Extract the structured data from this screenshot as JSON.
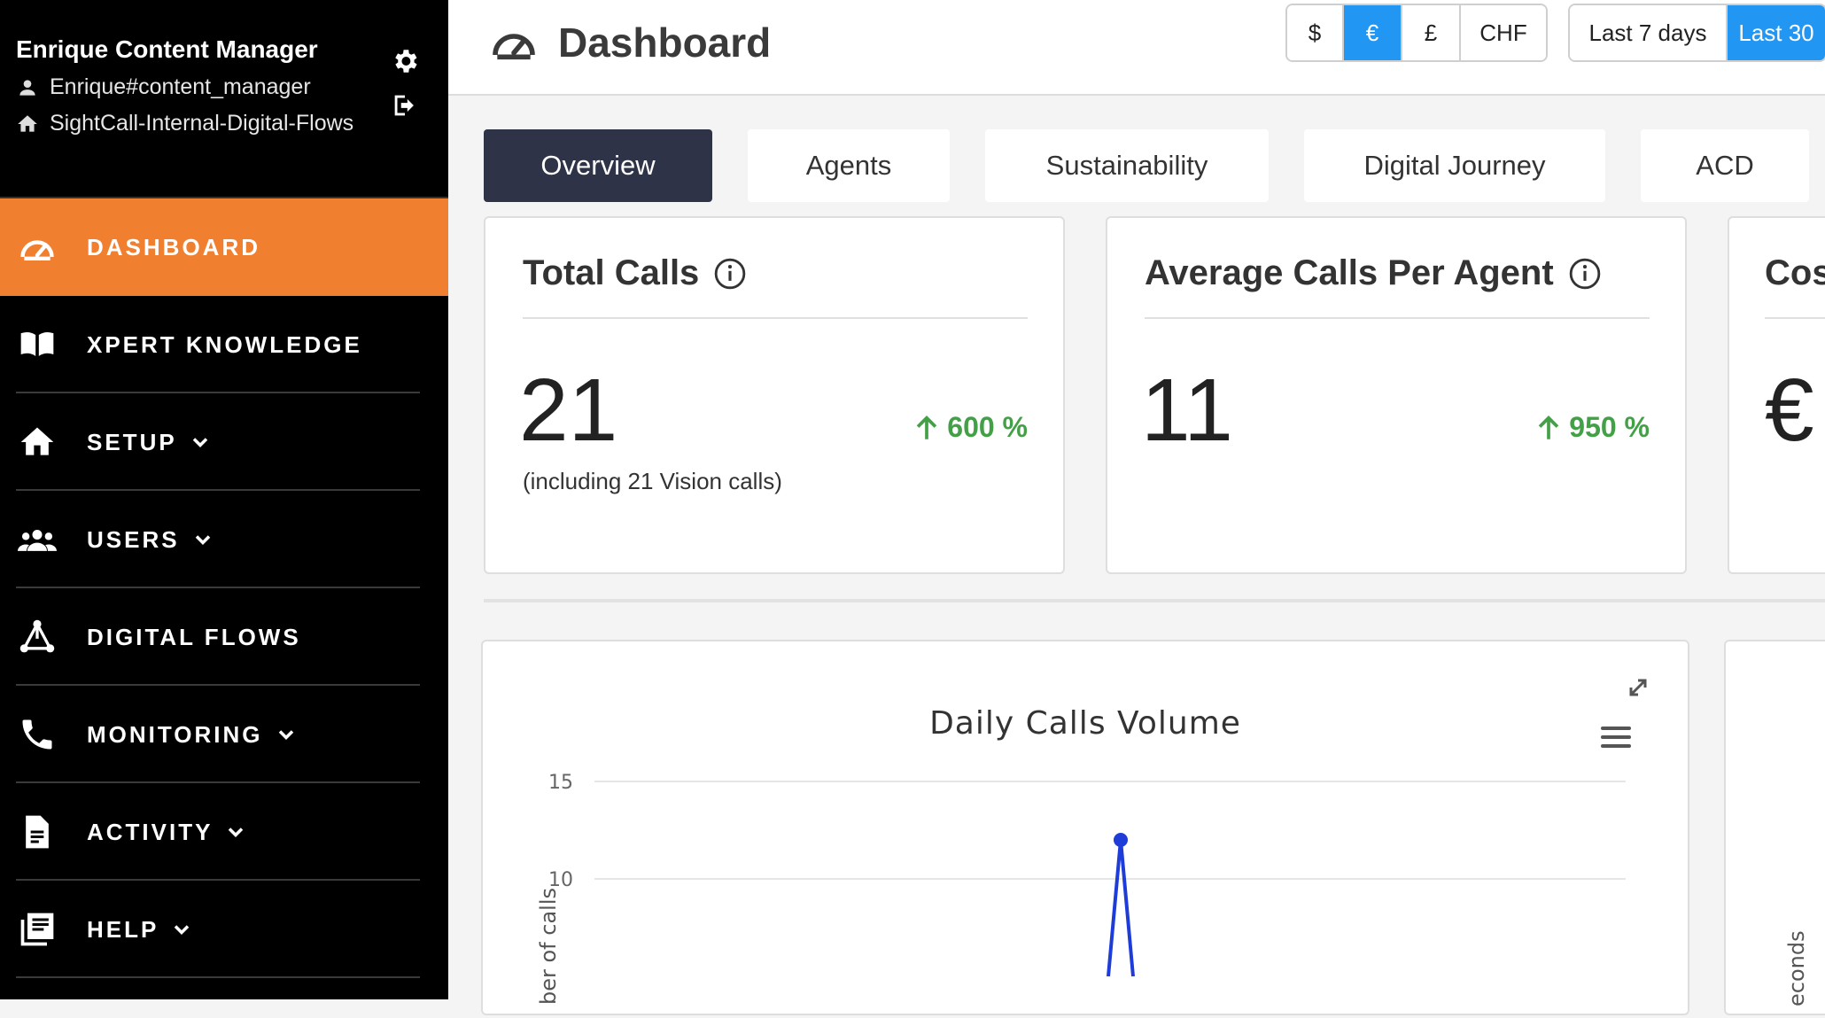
{
  "sidebar": {
    "user_name": "Enrique Content Manager",
    "username": "Enrique#content_manager",
    "organization": "SightCall-Internal-Digital-Flows",
    "nav": [
      {
        "label": "DASHBOARD"
      },
      {
        "label": "XPERT KNOWLEDGE"
      },
      {
        "label": "SETUP"
      },
      {
        "label": "USERS"
      },
      {
        "label": "DIGITAL FLOWS"
      },
      {
        "label": "MONITORING"
      },
      {
        "label": "ACTIVITY"
      },
      {
        "label": "HELP"
      }
    ]
  },
  "header": {
    "title": "Dashboard",
    "currencies": [
      "$",
      "€",
      "£",
      "CHF"
    ],
    "selected_currency": "€",
    "ranges": [
      "Last 7 days",
      "Last 30"
    ],
    "selected_range": "Last 30"
  },
  "tabs": [
    "Overview",
    "Agents",
    "Sustainability",
    "Digital Journey",
    "ACD"
  ],
  "kpis": {
    "total_calls": {
      "title": "Total Calls",
      "value": "21",
      "delta": "600 %",
      "sub": "(including 21 Vision calls)"
    },
    "avg_calls": {
      "title": "Average Calls Per Agent",
      "value": "11",
      "delta": "950 %"
    },
    "cost": {
      "title": "Cos",
      "value": "€"
    }
  },
  "colors": {
    "accent": "#f08030",
    "primary": "#2196f3",
    "tab_active": "#2e3347",
    "positive": "#43a047",
    "series": "#1e3cd8"
  },
  "chart_data": {
    "type": "line",
    "title": "Daily Calls Volume",
    "ylabel": "ber of calls",
    "yticks": [
      15,
      10
    ],
    "ylim": [
      5,
      15
    ],
    "series": [
      {
        "x": [
          0,
          1,
          2
        ],
        "y": [
          5,
          12,
          5
        ]
      }
    ],
    "xrange": [
      -4,
      4
    ]
  },
  "chart2": {
    "ylabel": "econds"
  }
}
